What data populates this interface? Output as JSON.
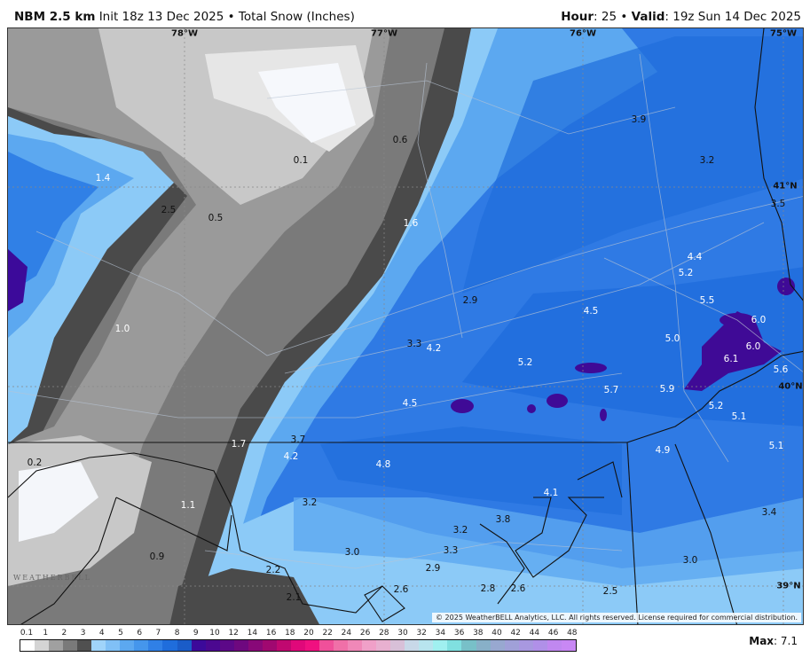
{
  "header": {
    "model": "NBM 2.5 km",
    "init": "Init 18z 13 Dec 2025",
    "separator": "•",
    "product": "Total Snow (Inches)",
    "hour_label": "Hour",
    "hour_value": ": 25",
    "valid_label": "Valid",
    "valid_value": ": 19z Sun 14 Dec 2025"
  },
  "map": {
    "longitude_labels": [
      "78°W",
      "77°W",
      "76°W",
      "75°W"
    ],
    "latitude_labels": [
      "41°N",
      "40°N",
      "39°N"
    ],
    "snow_values": [
      "1.4",
      "2.5",
      "0.5",
      "0.1",
      "0.6",
      "1.6",
      "3.9",
      "3.2",
      "3.5",
      "4.4",
      "5.2",
      "5.5",
      "6.0",
      "6.0",
      "6.1",
      "5.6",
      "5.0",
      "4.5",
      "2.9",
      "3.3",
      "4.2",
      "5.2",
      "5.7",
      "5.9",
      "5.2",
      "5.1",
      "4.5",
      "1.0",
      "1.7",
      "3.7",
      "4.2",
      "4.8",
      "0.2",
      "1.1",
      "3.2",
      "0.9",
      "3.0",
      "2.2",
      "2.1",
      "2.6",
      "2.9",
      "3.2",
      "3.3",
      "3.8",
      "4.1",
      "2.8",
      "2.6",
      "2.5",
      "3.0",
      "3.4",
      "4.9",
      "5.1"
    ],
    "copyright": "© 2025 WeatherBELL Analytics, LLC. All rights reserved. License required for commercial distribution.",
    "logo_text": "WeatherBELL",
    "colors": {
      "heavy": "#3f0a96",
      "moderate": "#2f7ae4",
      "light": "#8ccaf7",
      "trace": "#8a8a8a"
    }
  },
  "legend": {
    "ticks": [
      "0.1",
      "1",
      "2",
      "3",
      "4",
      "5",
      "6",
      "7",
      "8",
      "9",
      "10",
      "12",
      "14",
      "16",
      "18",
      "20",
      "22",
      "24",
      "26",
      "28",
      "30",
      "32",
      "34",
      "36",
      "38",
      "40",
      "42",
      "44",
      "46",
      "48"
    ],
    "colors": [
      "#ffffff",
      "#d4d4d4",
      "#a0a0a0",
      "#7a7a7a",
      "#505050",
      "#a0d4fa",
      "#80c0f6",
      "#5ca8f0",
      "#4596ec",
      "#3080e6",
      "#1f6ddc",
      "#1a5cc8",
      "#3c0a9a",
      "#4b0890",
      "#5c0888",
      "#6e087f",
      "#880878",
      "#a00870",
      "#c00870",
      "#e0087a",
      "#f01080",
      "#f0509a",
      "#f070a8",
      "#f088b8",
      "#f0a0c8",
      "#e8b0d0",
      "#d8c0d8",
      "#c8d8e8",
      "#b8e4ee",
      "#a0f0f0",
      "#80e0e0",
      "#78c0c8",
      "#88b0c8",
      "#98a8d0",
      "#a0a0d8",
      "#a898e0",
      "#b090e8",
      "#c088f0",
      "#c888f4"
    ],
    "max_label": "Max",
    "max_value": ": 7.1"
  }
}
